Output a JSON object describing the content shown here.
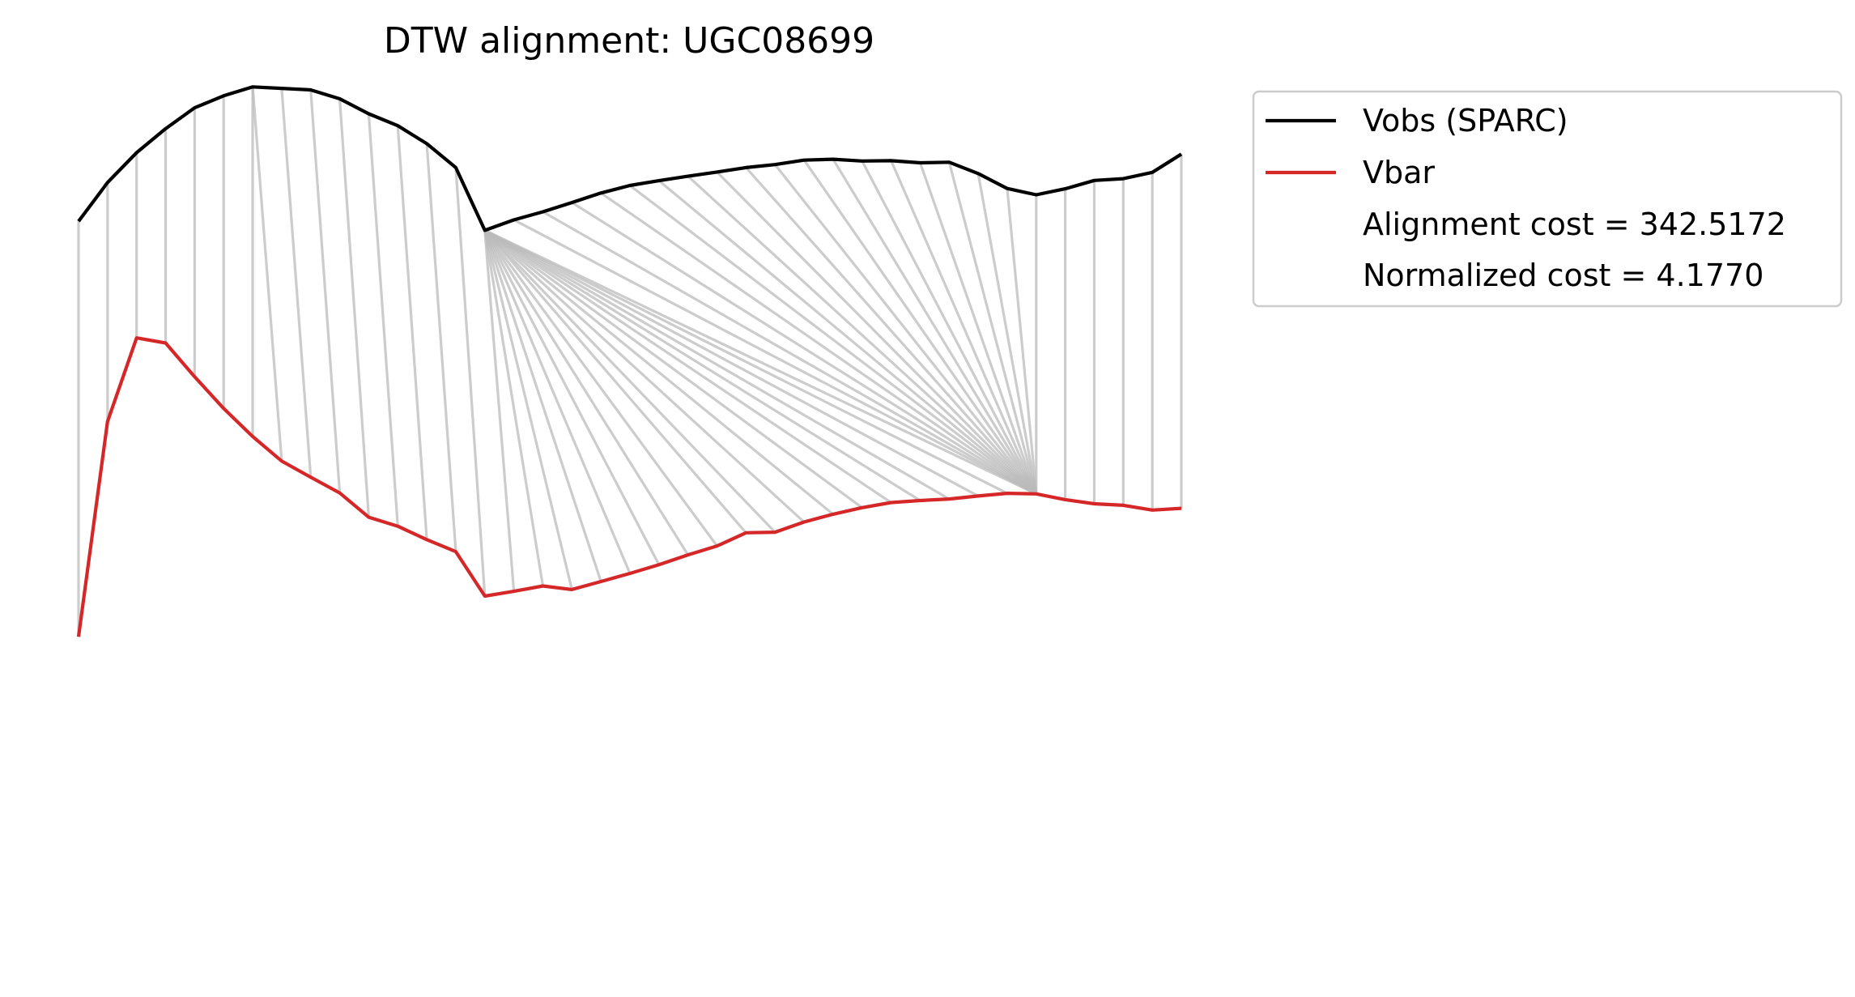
{
  "chart_data": {
    "type": "line",
    "title": "DTW alignment: UGC08699",
    "xlabel": "",
    "ylabel": "",
    "axes_visible": false,
    "grid": false,
    "legend_placement": "outside-top-right",
    "colors": {
      "vobs": "#000000",
      "vbar": "#d62728",
      "alignment": "#bbbbbb",
      "legend_border": "#cccccc"
    },
    "series": [
      {
        "name": "Vobs (SPARC)",
        "values": [
          122,
          135,
          145,
          153,
          160,
          164,
          167,
          166.5,
          166,
          163,
          158,
          154,
          148,
          140,
          119,
          122.5,
          125.2,
          128.3,
          131.5,
          134,
          135.6,
          137.1,
          138.5,
          140,
          141,
          142.5,
          142.8,
          142.2,
          142.3,
          141.6,
          141.8,
          138,
          133,
          130.9,
          132.9,
          135.7,
          136.3,
          138.4,
          144.5
        ]
      },
      {
        "name": "Vbar",
        "values": [
          -17,
          55,
          83,
          81.3,
          70,
          59.4,
          50,
          41.8,
          36.4,
          31.1,
          23,
          20,
          15.5,
          11.5,
          -3.4,
          -1.8,
          0,
          -1.2,
          1.5,
          4.2,
          7.1,
          10.4,
          13.4,
          17.8,
          18,
          21.4,
          24,
          26.2,
          27.9,
          28.6,
          29.1,
          30.1,
          31,
          30.8,
          28.9,
          27.5,
          27,
          25.4,
          26
        ]
      }
    ],
    "alignment_path": [
      [
        0,
        0
      ],
      [
        1,
        1
      ],
      [
        2,
        2
      ],
      [
        3,
        3
      ],
      [
        4,
        4
      ],
      [
        5,
        5
      ],
      [
        6,
        6
      ],
      [
        6,
        7
      ],
      [
        7,
        8
      ],
      [
        8,
        9
      ],
      [
        9,
        10
      ],
      [
        10,
        11
      ],
      [
        11,
        12
      ],
      [
        12,
        13
      ],
      [
        13,
        14
      ],
      [
        14,
        15
      ],
      [
        14,
        16
      ],
      [
        14,
        17
      ],
      [
        14,
        18
      ],
      [
        14,
        19
      ],
      [
        14,
        20
      ],
      [
        14,
        21
      ],
      [
        14,
        22
      ],
      [
        14,
        23
      ],
      [
        14,
        24
      ],
      [
        14,
        25
      ],
      [
        14,
        26
      ],
      [
        14,
        27
      ],
      [
        14,
        28
      ],
      [
        14,
        29
      ],
      [
        14,
        30
      ],
      [
        14,
        31
      ],
      [
        14,
        32
      ],
      [
        14,
        33
      ],
      [
        15,
        33
      ],
      [
        16,
        33
      ],
      [
        17,
        33
      ],
      [
        18,
        33
      ],
      [
        19,
        33
      ],
      [
        20,
        33
      ],
      [
        21,
        33
      ],
      [
        22,
        33
      ],
      [
        23,
        33
      ],
      [
        24,
        33
      ],
      [
        25,
        33
      ],
      [
        26,
        33
      ],
      [
        27,
        33
      ],
      [
        28,
        33
      ],
      [
        29,
        33
      ],
      [
        30,
        33
      ],
      [
        31,
        33
      ],
      [
        32,
        33
      ],
      [
        33,
        33
      ],
      [
        34,
        34
      ],
      [
        35,
        35
      ],
      [
        36,
        36
      ],
      [
        37,
        37
      ],
      [
        38,
        38
      ]
    ],
    "annotations": [
      "Alignment cost = 342.5172",
      "Normalized cost = 4.1770"
    ]
  }
}
